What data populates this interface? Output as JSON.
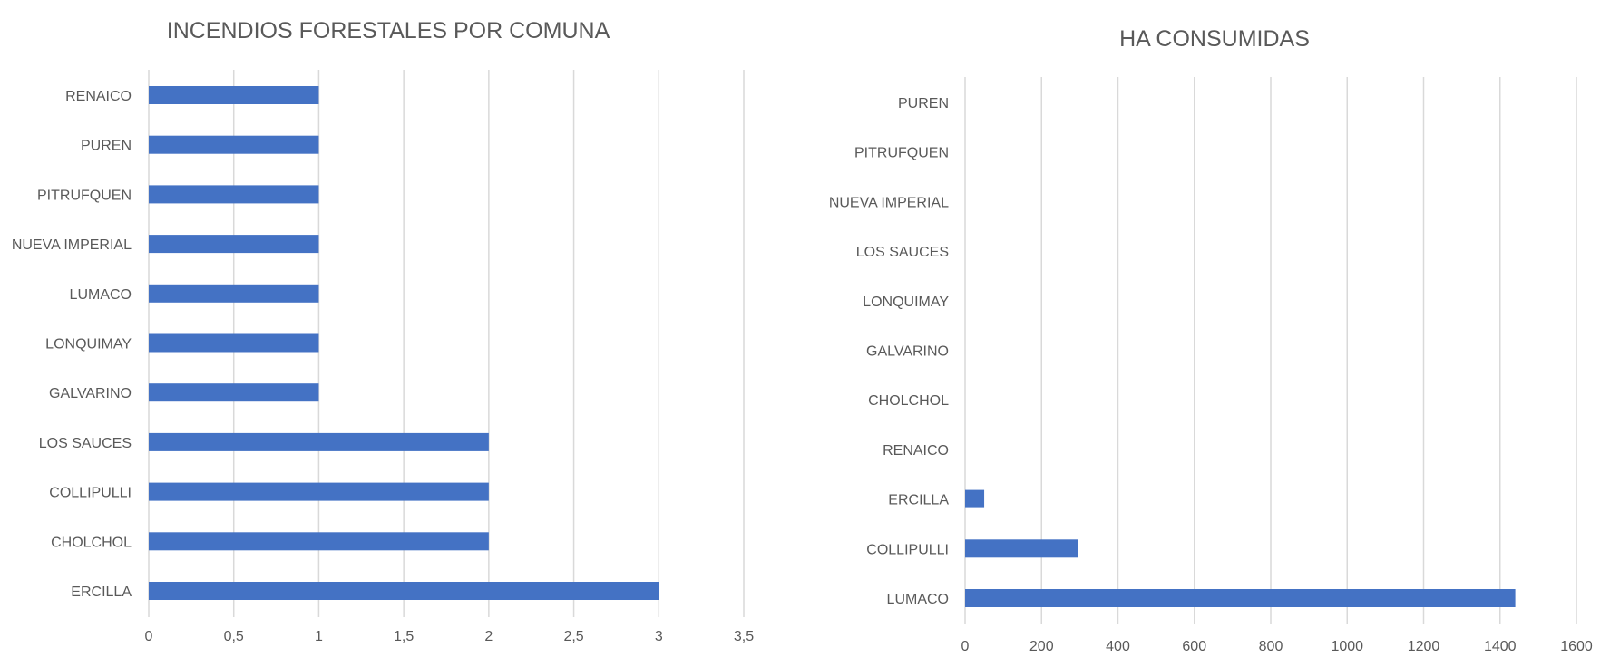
{
  "chart_data": [
    {
      "type": "bar",
      "orientation": "horizontal",
      "title": "INCENDIOS FORESTALES POR COMUNA",
      "categories": [
        "RENAICO",
        "PUREN",
        "PITRUFQUEN",
        "NUEVA IMPERIAL",
        "LUMACO",
        "LONQUIMAY",
        "GALVARINO",
        "LOS SAUCES",
        "COLLIPULLI",
        "CHOLCHOL",
        "ERCILLA"
      ],
      "values": [
        1,
        1,
        1,
        1,
        1,
        1,
        1,
        2,
        2,
        2,
        3
      ],
      "xlim": [
        0,
        3.5
      ],
      "xticks": [
        0,
        0.5,
        1,
        1.5,
        2,
        2.5,
        3,
        3.5
      ],
      "xtick_labels": [
        "0",
        "0,5",
        "1",
        "1,5",
        "2",
        "2,5",
        "3",
        "3,5"
      ],
      "grid": true,
      "bar_color": "#4472c4"
    },
    {
      "type": "bar",
      "orientation": "horizontal",
      "title": "HA CONSUMIDAS",
      "categories": [
        "PUREN",
        "PITRUFQUEN",
        "NUEVA IMPERIAL",
        "LOS SAUCES",
        "LONQUIMAY",
        "GALVARINO",
        "CHOLCHOL",
        "RENAICO",
        "ERCILLA",
        "COLLIPULLI",
        "LUMACO"
      ],
      "values": [
        0,
        0,
        0,
        0,
        0,
        0,
        0,
        0,
        50,
        295,
        1440
      ],
      "xlim": [
        0,
        1600
      ],
      "xticks": [
        0,
        200,
        400,
        600,
        800,
        1000,
        1200,
        1400,
        1600
      ],
      "xtick_labels": [
        "0",
        "200",
        "400",
        "600",
        "800",
        "1000",
        "1200",
        "1400",
        "1600"
      ],
      "grid": true,
      "bar_color": "#4472c4"
    }
  ]
}
